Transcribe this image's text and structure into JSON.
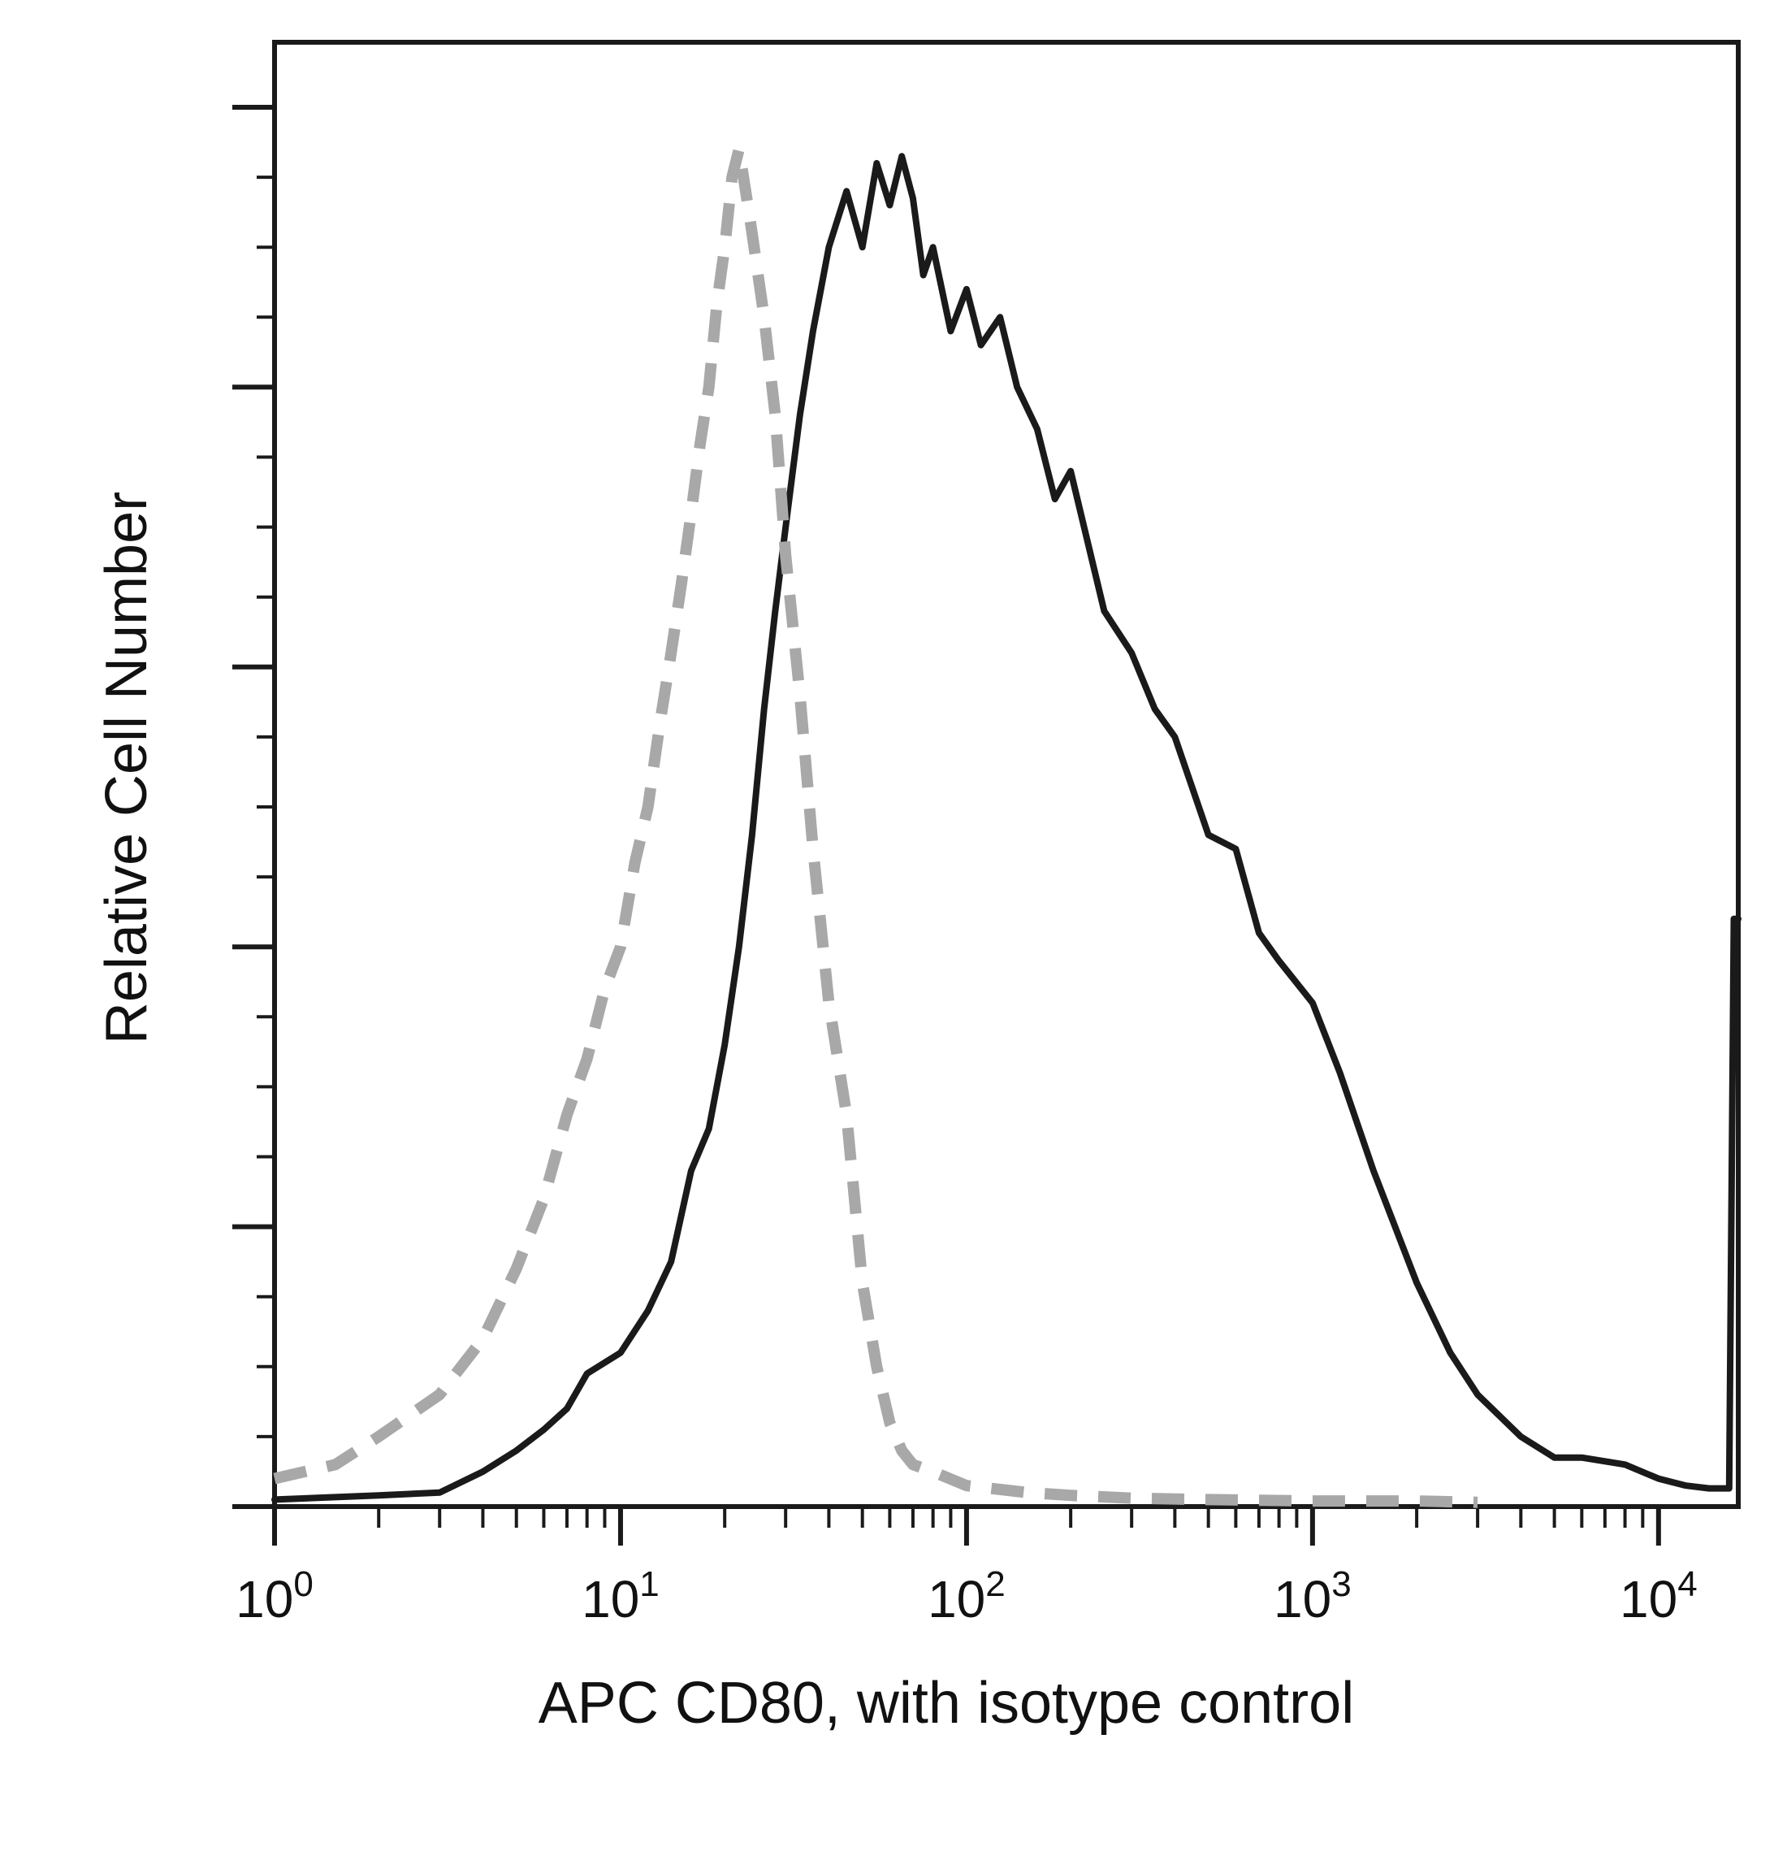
{
  "chart_data": {
    "type": "line",
    "title": "",
    "xlabel": "APC CD80, with isotype control",
    "ylabel": "Relative Cell Number",
    "x_scale": "log",
    "xlim": [
      1,
      17000
    ],
    "ylim": [
      0,
      100
    ],
    "grid": false,
    "x_ticks": [
      {
        "value": 1,
        "base": "10",
        "exp": "0"
      },
      {
        "value": 10,
        "base": "10",
        "exp": "1"
      },
      {
        "value": 100,
        "base": "10",
        "exp": "2"
      },
      {
        "value": 1000,
        "base": "10",
        "exp": "3"
      },
      {
        "value": 10000,
        "base": "10",
        "exp": "4"
      }
    ],
    "series": [
      {
        "style": "solid",
        "color": "#1a1a1a",
        "x": [
          1,
          2,
          3,
          4,
          5,
          6,
          7,
          8,
          10,
          12,
          14,
          16,
          18,
          20,
          22,
          24,
          26,
          28,
          30,
          33,
          36,
          40,
          45,
          50,
          55,
          60,
          65,
          70,
          75,
          80,
          90,
          100,
          110,
          125,
          140,
          160,
          180,
          200,
          250,
          300,
          350,
          400,
          500,
          600,
          700,
          800,
          1000,
          1200,
          1500,
          2000,
          2500,
          3000,
          4000,
          5000,
          6000,
          8000,
          10000,
          12000,
          14000,
          16000,
          16500,
          17000
        ],
        "y": [
          0.5,
          0.8,
          1.0,
          2.5,
          4.0,
          5.5,
          7.0,
          9.5,
          11.0,
          14.0,
          17.5,
          24.0,
          27.0,
          33.0,
          40.0,
          48.0,
          57.0,
          64.0,
          70.0,
          78.0,
          84.0,
          90.0,
          94.0,
          90.0,
          96.0,
          93.0,
          96.5,
          93.5,
          88.0,
          90.0,
          84.0,
          87.0,
          83.0,
          85.0,
          80.0,
          77.0,
          72.0,
          74.0,
          64.0,
          61.0,
          57.0,
          55.0,
          48.0,
          47.0,
          41.0,
          39.0,
          36.0,
          31.0,
          24.0,
          16.0,
          11.0,
          8.0,
          5.0,
          3.5,
          3.5,
          3.0,
          2.0,
          1.5,
          1.3,
          1.3,
          42.0,
          42.0
        ]
      },
      {
        "style": "dashed",
        "color": "#a8a8a8",
        "x": [
          1,
          1.5,
          2,
          3,
          4,
          5,
          6,
          7,
          8,
          9,
          10,
          11,
          12,
          13,
          14,
          15,
          16,
          17,
          18,
          19,
          20,
          21,
          22,
          23,
          24,
          26,
          28,
          30,
          33,
          36,
          40,
          45,
          50,
          55,
          60,
          65,
          70,
          80,
          100,
          150,
          200,
          300,
          500,
          1000,
          2000,
          3000
        ],
        "y": [
          2.0,
          3.0,
          5.0,
          8.0,
          12.0,
          17.0,
          22.0,
          28.0,
          32.0,
          37.0,
          40.0,
          46.0,
          50.0,
          56.0,
          61.0,
          66.0,
          71.0,
          76.0,
          80.0,
          86.0,
          90.0,
          95.0,
          97.0,
          94.0,
          91.0,
          85.0,
          78.0,
          68.0,
          58.0,
          47.0,
          36.0,
          28.0,
          16.0,
          10.0,
          6.0,
          4.0,
          3.0,
          2.5,
          1.5,
          1.0,
          0.8,
          0.6,
          0.5,
          0.4,
          0.4,
          0.3
        ]
      }
    ]
  }
}
